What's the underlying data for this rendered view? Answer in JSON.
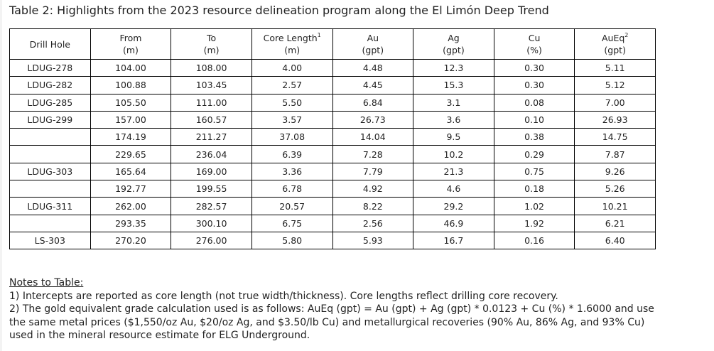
{
  "title": "Table 2: Highlights from the 2023 resource delineation program along the El Limón Deep Trend",
  "headers": [
    {
      "l1": "Drill Hole",
      "l2": "",
      "sup": ""
    },
    {
      "l1": "From",
      "l2": "(m)",
      "sup": ""
    },
    {
      "l1": "To",
      "l2": "(m)",
      "sup": ""
    },
    {
      "l1": "Core Length",
      "l2": "(m)",
      "sup": "1"
    },
    {
      "l1": "Au",
      "l2": "(gpt)",
      "sup": ""
    },
    {
      "l1": "Ag",
      "l2": "(gpt)",
      "sup": ""
    },
    {
      "l1": "Cu",
      "l2": "(%)",
      "sup": ""
    },
    {
      "l1": "AuEq",
      "l2": "(gpt)",
      "sup": "2"
    }
  ],
  "rows": [
    [
      "LDUG-278",
      "104.00",
      "108.00",
      "4.00",
      "4.48",
      "12.3",
      "0.30",
      "5.11"
    ],
    [
      "LDUG-282",
      "100.88",
      "103.45",
      "2.57",
      "4.45",
      "15.3",
      "0.30",
      "5.12"
    ],
    [
      "LDUG-285",
      "105.50",
      "111.00",
      "5.50",
      "6.84",
      "3.1",
      "0.08",
      "7.00"
    ],
    [
      "LDUG-299",
      "157.00",
      "160.57",
      "3.57",
      "26.73",
      "3.6",
      "0.10",
      "26.93"
    ],
    [
      "",
      "174.19",
      "211.27",
      "37.08",
      "14.04",
      "9.5",
      "0.38",
      "14.75"
    ],
    [
      "",
      "229.65",
      "236.04",
      "6.39",
      "7.28",
      "10.2",
      "0.29",
      "7.87"
    ],
    [
      "LDUG-303",
      "165.64",
      "169.00",
      "3.36",
      "7.79",
      "21.3",
      "0.75",
      "9.26"
    ],
    [
      "",
      "192.77",
      "199.55",
      "6.78",
      "4.92",
      "4.6",
      "0.18",
      "5.26"
    ],
    [
      "LDUG-311",
      "262.00",
      "282.57",
      "20.57",
      "8.22",
      "29.2",
      "1.02",
      "10.21"
    ],
    [
      "",
      "293.35",
      "300.10",
      "6.75",
      "2.56",
      "46.9",
      "1.92",
      "6.21"
    ],
    [
      "LS-303",
      "270.20",
      "276.00",
      "5.80",
      "5.93",
      "16.7",
      "0.16",
      "6.40"
    ]
  ],
  "notes": {
    "heading": "Notes to Table:",
    "items": [
      "1) Intercepts are reported as core length (not true width/thickness). Core lengths reflect drilling core recovery.",
      "2) The gold equivalent grade calculation used is as follows: AuEq (gpt) = Au (gpt) + Ag (gpt) * 0.0123 + Cu (%) * 1.6000 and use the same metal prices ($1,550/oz Au, $20/oz Ag, and $3.50/lb Cu) and metallurgical recoveries (90% Au, 86% Ag, and 93% Cu) used in the mineral resource estimate for ELG Underground."
    ]
  }
}
